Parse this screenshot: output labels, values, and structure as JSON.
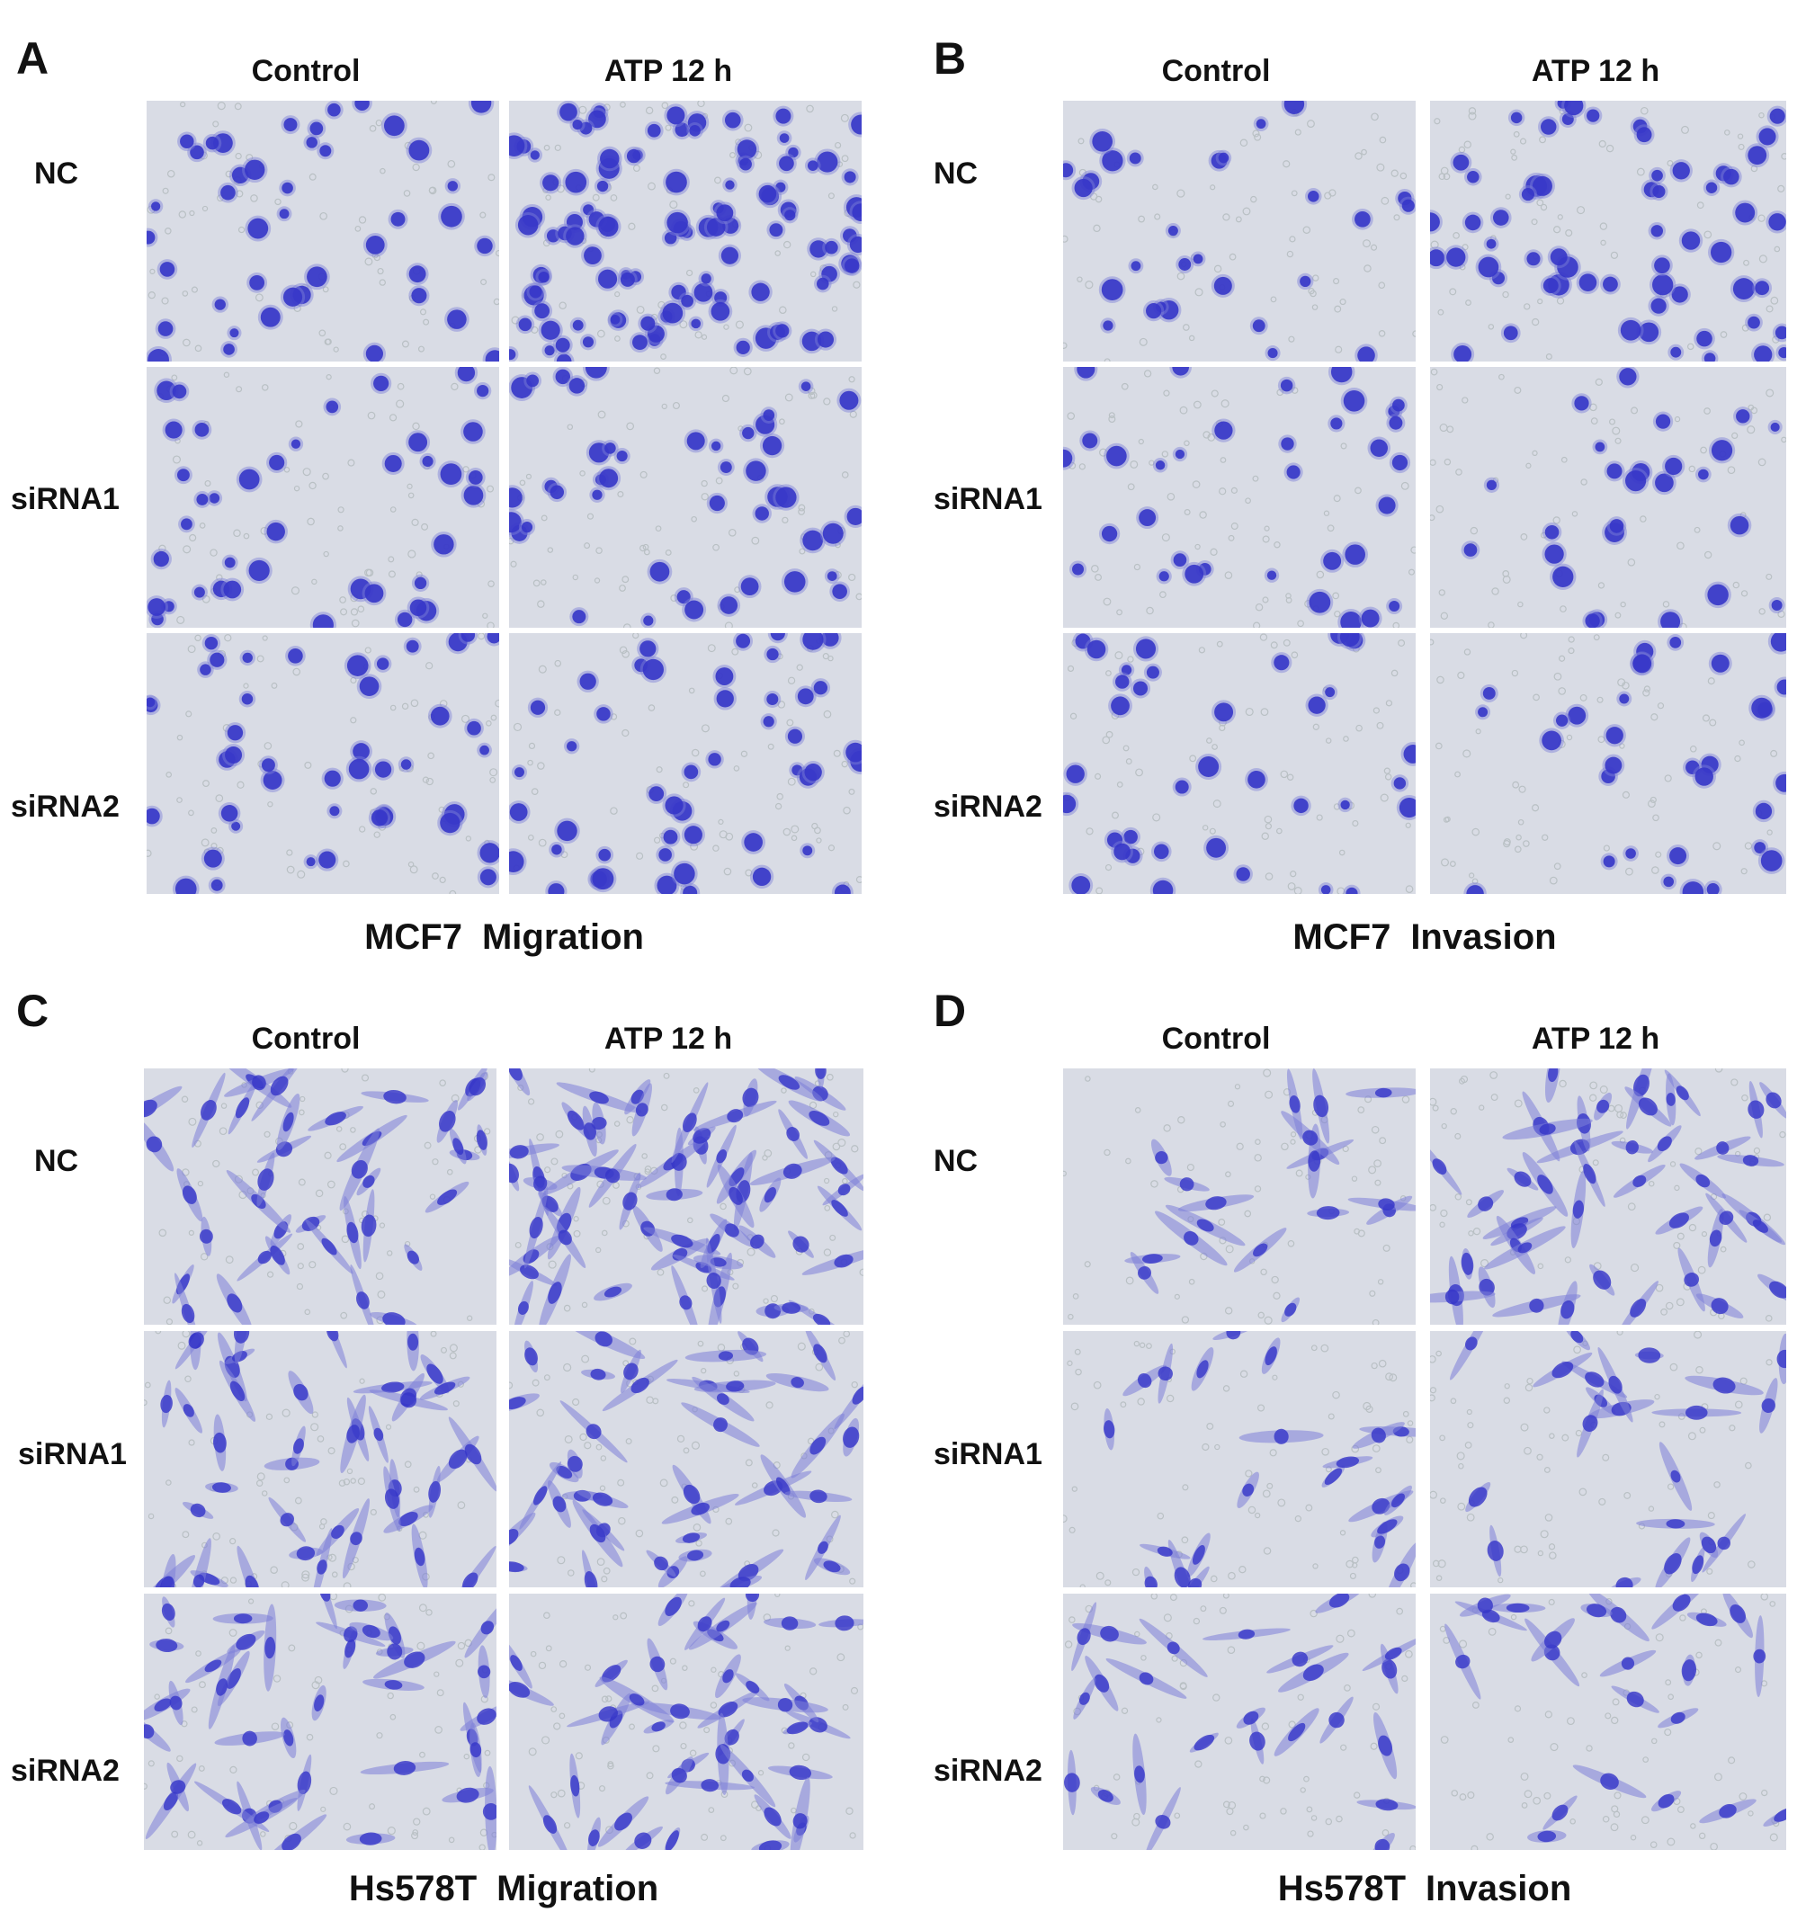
{
  "panels": [
    {
      "letter": "A",
      "columns": [
        "Control",
        "ATP 12 h"
      ],
      "rows": [
        "NC",
        "siRNA1",
        "siRNA2"
      ],
      "caption": {
        "cell_line": "MCF7",
        "assay": "Migration"
      },
      "style": "round",
      "density": [
        [
          42,
          110
        ],
        [
          40,
          44
        ],
        [
          44,
          48
        ]
      ]
    },
    {
      "letter": "B",
      "columns": [
        "Control",
        "ATP 12 h"
      ],
      "rows": [
        "NC",
        "siRNA1",
        "siRNA2"
      ],
      "caption": {
        "cell_line": "MCF7",
        "assay": "Invasion"
      },
      "style": "round",
      "density": [
        [
          28,
          60
        ],
        [
          34,
          26
        ],
        [
          36,
          32
        ]
      ]
    },
    {
      "letter": "C",
      "columns": [
        "Control",
        "ATP 12 h"
      ],
      "rows": [
        "NC",
        "siRNA1",
        "siRNA2"
      ],
      "caption": {
        "cell_line": "Hs578T",
        "assay": "Migration"
      },
      "style": "spindle",
      "density": [
        [
          38,
          62
        ],
        [
          42,
          42
        ],
        [
          40,
          40
        ]
      ]
    },
    {
      "letter": "D",
      "columns": [
        "Control",
        "ATP 12 h"
      ],
      "rows": [
        "NC",
        "siRNA1",
        "siRNA2"
      ],
      "caption": {
        "cell_line": "Hs578T",
        "assay": "Invasion"
      },
      "style": "spindle",
      "density": [
        [
          18,
          44
        ],
        [
          22,
          22
        ],
        [
          24,
          22
        ]
      ]
    }
  ],
  "colors": {
    "background": "#dfe3e4",
    "stain": "#3535c8",
    "stain_light": "#7d7fd8",
    "pore": "#b9c0c4"
  }
}
